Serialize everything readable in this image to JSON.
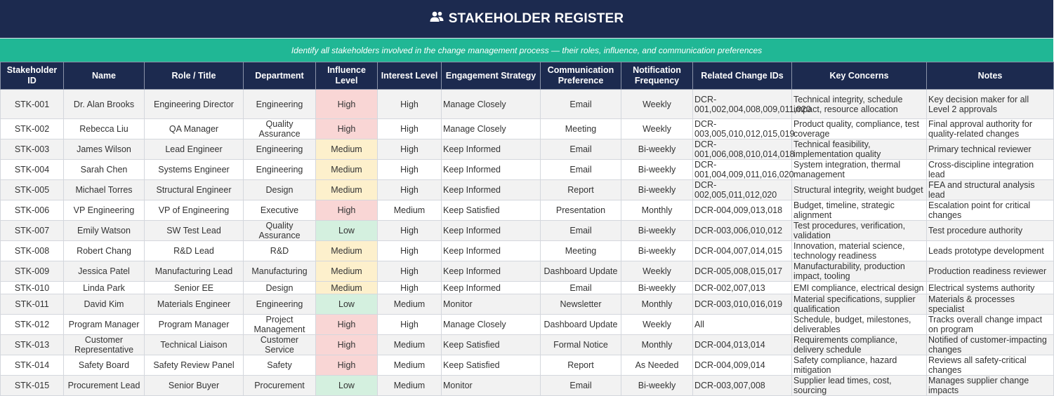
{
  "header": {
    "icon": "users-icon",
    "title": "STAKEHOLDER REGISTER",
    "subtitle": "Identify all stakeholders involved in the change management process — their roles, influence, and communication preferences"
  },
  "colors": {
    "title_bg": "#1c2a4f",
    "subtitle_bg": "#20b795",
    "high": "#f9d6d5",
    "medium": "#fdf0cc",
    "low": "#d4f0df"
  },
  "columns": [
    "Stakeholder ID",
    "Name",
    "Role / Title",
    "Department",
    "Influence Level",
    "Interest Level",
    "Engagement Strategy",
    "Communication Preference",
    "Notification Frequency",
    "Related Change IDs",
    "Key Concerns",
    "Notes"
  ],
  "rows": [
    [
      "STK-001",
      "Dr. Alan Brooks",
      "Engineering Director",
      "Engineering",
      "High",
      "High",
      "Manage Closely",
      "Email",
      "Weekly",
      "DCR-001,002,004,008,009,011,020",
      "Technical integrity, schedule impact, resource allocation",
      "Key decision maker for all Level 2 approvals"
    ],
    [
      "STK-002",
      "Rebecca Liu",
      "QA Manager",
      "Quality Assurance",
      "High",
      "High",
      "Manage Closely",
      "Meeting",
      "Weekly",
      "DCR-003,005,010,012,015,019",
      "Product quality, compliance, test coverage",
      "Final approval authority for quality-related changes"
    ],
    [
      "STK-003",
      "James Wilson",
      "Lead Engineer",
      "Engineering",
      "Medium",
      "High",
      "Keep Informed",
      "Email",
      "Bi-weekly",
      "DCR-001,006,008,010,014,018",
      "Technical feasibility, implementation quality",
      "Primary technical reviewer"
    ],
    [
      "STK-004",
      "Sarah Chen",
      "Systems Engineer",
      "Engineering",
      "Medium",
      "High",
      "Keep Informed",
      "Email",
      "Bi-weekly",
      "DCR-001,004,009,011,016,020",
      "System integration, thermal management",
      "Cross-discipline integration lead"
    ],
    [
      "STK-005",
      "Michael Torres",
      "Structural Engineer",
      "Design",
      "Medium",
      "High",
      "Keep Informed",
      "Report",
      "Bi-weekly",
      "DCR-002,005,011,012,020",
      "Structural integrity, weight budget",
      "FEA and structural analysis lead"
    ],
    [
      "STK-006",
      "VP Engineering",
      "VP of Engineering",
      "Executive",
      "High",
      "Medium",
      "Keep Satisfied",
      "Presentation",
      "Monthly",
      "DCR-004,009,013,018",
      "Budget, timeline, strategic alignment",
      "Escalation point for critical changes"
    ],
    [
      "STK-007",
      "Emily Watson",
      "SW Test Lead",
      "Quality Assurance",
      "Low",
      "High",
      "Keep Informed",
      "Email",
      "Bi-weekly",
      "DCR-003,006,010,012",
      "Test procedures, verification, validation",
      "Test procedure authority"
    ],
    [
      "STK-008",
      "Robert Chang",
      "R&D Lead",
      "R&D",
      "Medium",
      "High",
      "Keep Informed",
      "Meeting",
      "Bi-weekly",
      "DCR-004,007,014,015",
      "Innovation, material science, technology readiness",
      "Leads prototype development"
    ],
    [
      "STK-009",
      "Jessica Patel",
      "Manufacturing Lead",
      "Manufacturing",
      "Medium",
      "High",
      "Keep Informed",
      "Dashboard Update",
      "Weekly",
      "DCR-005,008,015,017",
      "Manufacturability, production impact, tooling",
      "Production readiness reviewer"
    ],
    [
      "STK-010",
      "Linda Park",
      "Senior EE",
      "Design",
      "Medium",
      "High",
      "Keep Informed",
      "Email",
      "Bi-weekly",
      "DCR-002,007,013",
      "EMI compliance, electrical design",
      "Electrical systems authority"
    ],
    [
      "STK-011",
      "David Kim",
      "Materials Engineer",
      "Engineering",
      "Low",
      "Medium",
      "Monitor",
      "Newsletter",
      "Monthly",
      "DCR-003,010,016,019",
      "Material specifications, supplier qualification",
      "Materials & processes specialist"
    ],
    [
      "STK-012",
      "Program Manager",
      "Program Manager",
      "Project Management",
      "High",
      "High",
      "Manage Closely",
      "Dashboard Update",
      "Weekly",
      "All",
      "Schedule, budget, milestones, deliverables",
      "Tracks overall change impact on program"
    ],
    [
      "STK-013",
      "Customer Representative",
      "Technical Liaison",
      "Customer Service",
      "High",
      "Medium",
      "Keep Satisfied",
      "Formal Notice",
      "Monthly",
      "DCR-004,013,014",
      "Requirements compliance, delivery schedule",
      "Notified of customer-impacting changes"
    ],
    [
      "STK-014",
      "Safety Board",
      "Safety Review Panel",
      "Safety",
      "High",
      "Medium",
      "Keep Satisfied",
      "Report",
      "As Needed",
      "DCR-004,009,014",
      "Safety compliance, hazard mitigation",
      "Reviews all safety-critical changes"
    ],
    [
      "STK-015",
      "Procurement Lead",
      "Senior Buyer",
      "Procurement",
      "Low",
      "Medium",
      "Monitor",
      "Email",
      "Bi-weekly",
      "DCR-003,007,008",
      "Supplier lead times, cost, sourcing",
      "Manages supplier change impacts"
    ]
  ]
}
